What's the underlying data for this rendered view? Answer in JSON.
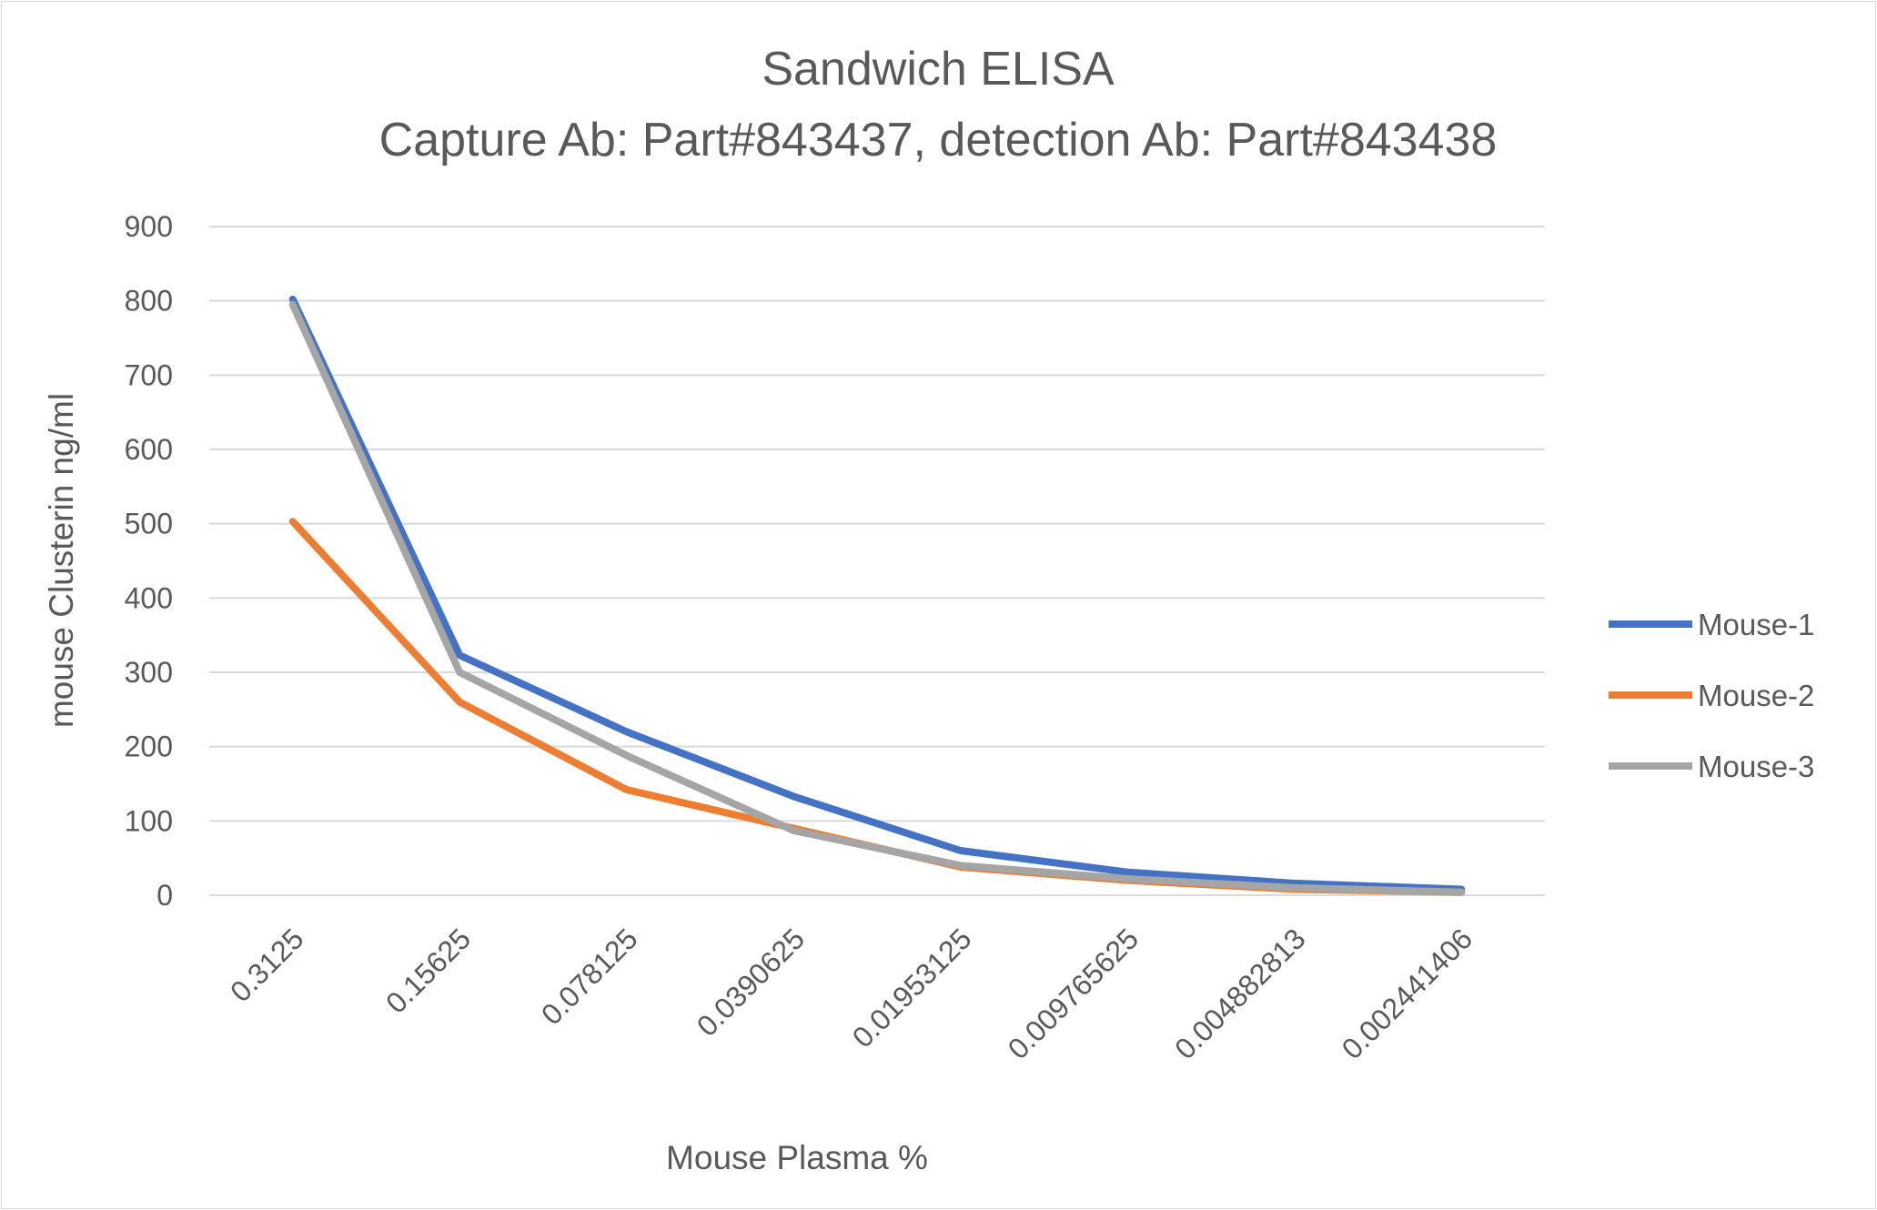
{
  "chart_data": {
    "type": "line",
    "title": "Sandwich ELISA",
    "subtitle": "Capture Ab: Part#843437, detection Ab: Part#843438",
    "xlabel": "Mouse Plasma %",
    "ylabel": "mouse Clusterin ng/ml",
    "ylim": [
      0,
      900
    ],
    "yticks": [
      "0",
      "100",
      "200",
      "300",
      "400",
      "500",
      "600",
      "700",
      "800",
      "900"
    ],
    "grid": true,
    "legend_position": "right",
    "categories": [
      "0.3125",
      "0.15625",
      "0.078125",
      "0.0390625",
      "0.01953125",
      "0.009765625",
      "0.004882813",
      "0.002441406"
    ],
    "series": [
      {
        "name": "Mouse-1",
        "color": "#4472c4",
        "values": [
          802,
          323,
          220,
          133,
          60,
          31,
          16,
          8
        ]
      },
      {
        "name": "Mouse-2",
        "color": "#ed7d31",
        "values": [
          503,
          260,
          142,
          90,
          38,
          20,
          8,
          4
        ]
      },
      {
        "name": "Mouse-3",
        "color": "#a5a5a5",
        "values": [
          795,
          300,
          188,
          87,
          40,
          22,
          10,
          4
        ]
      }
    ]
  }
}
